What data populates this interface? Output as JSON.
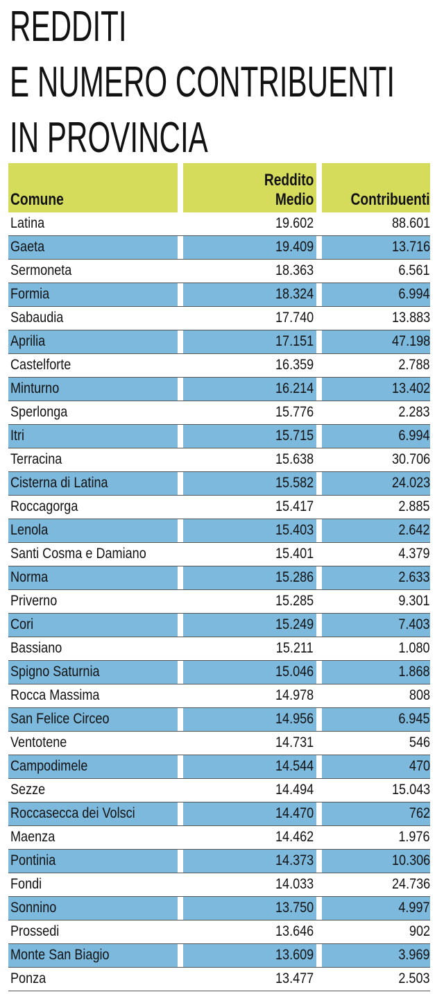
{
  "title": [
    "REDDITI",
    "E NUMERO CONTRIBUENTI",
    "IN PROVINCIA"
  ],
  "colors": {
    "header": "#d5dc5c",
    "stripe": "#7cb9dd"
  },
  "columns": [
    "Comune",
    "Reddito\nMedio",
    "Contribuenti"
  ],
  "rows": [
    [
      "Latina",
      "19.602",
      "88.601"
    ],
    [
      "Gaeta",
      "19.409",
      "13.716"
    ],
    [
      "Sermoneta",
      "18.363",
      "6.561"
    ],
    [
      "Formia",
      "18.324",
      "6.994"
    ],
    [
      "Sabaudia",
      "17.740",
      "13.883"
    ],
    [
      "Aprilia",
      "17.151",
      "47.198"
    ],
    [
      "Castelforte",
      "16.359",
      "2.788"
    ],
    [
      "Minturno",
      "16.214",
      "13.402"
    ],
    [
      "Sperlonga",
      "15.776",
      "2.283"
    ],
    [
      "Itri",
      "15.715",
      "6.994"
    ],
    [
      "Terracina",
      "15.638",
      "30.706"
    ],
    [
      "Cisterna di Latina",
      "15.582",
      "24.023"
    ],
    [
      "Roccagorga",
      "15.417",
      "2.885"
    ],
    [
      "Lenola",
      "15.403",
      "2.642"
    ],
    [
      "Santi Cosma e Damiano",
      "15.401",
      "4.379"
    ],
    [
      "Norma",
      "15.286",
      "2.633"
    ],
    [
      "Priverno",
      "15.285",
      "9.301"
    ],
    [
      "Cori",
      "15.249",
      "7.403"
    ],
    [
      "Bassiano",
      "15.211",
      "1.080"
    ],
    [
      "Spigno Saturnia",
      "15.046",
      "1.868"
    ],
    [
      "Rocca Massima",
      "14.978",
      "808"
    ],
    [
      "San Felice Circeo",
      "14.956",
      "6.945"
    ],
    [
      "Ventotene",
      "14.731",
      "546"
    ],
    [
      "Campodimele",
      "14.544",
      "470"
    ],
    [
      "Sezze",
      "14.494",
      "15.043"
    ],
    [
      "Roccasecca dei Volsci",
      "14.470",
      "762"
    ],
    [
      "Maenza",
      "14.462",
      "1.976"
    ],
    [
      "Pontinia",
      "14.373",
      "10.306"
    ],
    [
      "Fondi",
      "14.033",
      "24.736"
    ],
    [
      "Sonnino",
      "13.750",
      "4.997"
    ],
    [
      "Prossedi",
      "13.646",
      "902"
    ],
    [
      "Monte San Biagio",
      "13.609",
      "3.969"
    ],
    [
      "Ponza",
      "13.477",
      "2.503"
    ]
  ]
}
